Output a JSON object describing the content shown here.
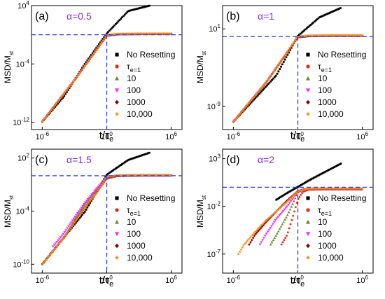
{
  "figure": {
    "legend_entries": [
      "No Resetting",
      "τ_e=1",
      "10",
      "100",
      "1000",
      "10,000"
    ],
    "legend_colors": [
      "#000000",
      "#ff1a1a",
      "#6b8e23",
      "#ff22ff",
      "#8b0000",
      "#ff8c1a"
    ],
    "legend_markers": [
      "square",
      "circle",
      "triangle-up",
      "triangle-down",
      "diamond",
      "star"
    ]
  },
  "chart_data": [
    {
      "type": "scatter",
      "panel_label": "(a)",
      "alpha_label": "α=0.5",
      "xlabel": "t/τ_e",
      "ylabel": "MSD/M_st",
      "scale": "log-log",
      "xlim": [
        1e-07,
        10000000.0
      ],
      "ylim": [
        1e-13,
        10000.0
      ],
      "xticks": [
        "10^-6",
        "10^0",
        "10^6"
      ],
      "yticks": [
        "10^-12",
        "10^-4",
        "10^4"
      ],
      "reference_lines": {
        "horizontal_y": 1,
        "vertical_x": 1
      },
      "series": [
        {
          "name": "No Resetting",
          "x": [
            1e-06,
            0.0001,
            0.01,
            1,
            100,
            10000
          ],
          "y": [
            1.2e-12,
            3.2e-09,
            0.00012,
            1.5,
            1800,
            10000
          ]
        },
        {
          "name": "τ_e=1",
          "x": [
            1e-06,
            0.001,
            1,
            10,
            1000,
            1000000
          ],
          "y": [
            1.2e-12,
            6e-07,
            0.7,
            1.1,
            1.2,
            1.2
          ]
        },
        {
          "name": "10",
          "x": [
            1e-06,
            0.001,
            1,
            10,
            1000,
            1000000
          ],
          "y": [
            1.2e-12,
            6e-07,
            0.75,
            1.15,
            1.25,
            1.25
          ]
        },
        {
          "name": "100",
          "x": [
            1e-06,
            0.001,
            1,
            10,
            1000,
            1000000
          ],
          "y": [
            1.2e-12,
            6e-07,
            0.8,
            1.2,
            1.3,
            1.3
          ]
        },
        {
          "name": "1000",
          "x": [
            1e-06,
            0.001,
            1,
            10,
            1000,
            1000000
          ],
          "y": [
            1.2e-12,
            6e-07,
            0.85,
            1.25,
            1.35,
            1.35
          ]
        },
        {
          "name": "10,000",
          "x": [
            1e-06,
            0.001,
            1,
            10,
            1000,
            1000000
          ],
          "y": [
            1.2e-12,
            6e-07,
            0.9,
            1.3,
            1.4,
            1.4
          ]
        }
      ]
    },
    {
      "type": "scatter",
      "panel_label": "(b)",
      "alpha_label": "α=1",
      "xlabel": "t/τ_e",
      "ylabel": "MSD/M_st",
      "scale": "log-log",
      "xlim": [
        1e-07,
        10000000.0
      ],
      "ylim": [
        1e-12,
        10000.0
      ],
      "xticks": [
        "10^-6",
        "10^0",
        "10^6"
      ],
      "yticks": [
        "10^-9",
        "10^1"
      ],
      "reference_lines": {
        "horizontal_y": 1,
        "vertical_x": 1
      },
      "series": [
        {
          "name": "No Resetting",
          "x": [
            1e-06,
            0.0001,
            0.01,
            1,
            100,
            10000
          ],
          "y": [
            1e-11,
            1e-08,
            1e-05,
            1.2,
            300,
            5000
          ]
        },
        {
          "name": "τ_e=1",
          "x": [
            1e-06,
            0.001,
            1,
            10,
            1000,
            1000000
          ],
          "y": [
            1e-11,
            1e-06,
            0.75,
            1.1,
            1.2,
            1.2
          ]
        },
        {
          "name": "10",
          "x": [
            1e-06,
            0.001,
            1,
            10,
            1000,
            1000000
          ],
          "y": [
            1e-11,
            1e-06,
            0.8,
            1.15,
            1.25,
            1.25
          ]
        },
        {
          "name": "100",
          "x": [
            1e-06,
            0.001,
            1,
            10,
            1000,
            1000000
          ],
          "y": [
            1e-11,
            1e-06,
            0.85,
            1.2,
            1.3,
            1.3
          ]
        },
        {
          "name": "1000",
          "x": [
            1e-06,
            0.001,
            1,
            10,
            1000,
            1000000
          ],
          "y": [
            1e-11,
            1e-06,
            0.9,
            1.25,
            1.35,
            1.35
          ]
        },
        {
          "name": "10,000",
          "x": [
            1e-06,
            0.001,
            1,
            10,
            1000,
            1000000
          ],
          "y": [
            1e-11,
            1e-06,
            0.95,
            1.3,
            1.4,
            1.4
          ]
        }
      ]
    },
    {
      "type": "scatter",
      "panel_label": "(c)",
      "alpha_label": "α=1.5",
      "xlabel": "t/τ_e",
      "ylabel": "MSD/M_st",
      "scale": "log-log",
      "xlim": [
        1e-07,
        10000000.0
      ],
      "ylim": [
        1e-11,
        1000.0
      ],
      "xticks": [
        "10^-6",
        "10^0",
        "10^6"
      ],
      "yticks": [
        "10^-10",
        "10^-4",
        "10^2"
      ],
      "reference_lines": {
        "horizontal_y": 1,
        "vertical_x": 1
      },
      "series": [
        {
          "name": "No Resetting",
          "x": [
            1e-06,
            0.0001,
            0.01,
            1,
            100,
            10000
          ],
          "y": [
            1e-10,
            1e-07,
            0.0001,
            1.3,
            60,
            400
          ]
        },
        {
          "name": "τ_e=1",
          "x": [
            0.001,
            0.01,
            0.1,
            0.5,
            1,
            10,
            1000,
            1000000
          ],
          "y": [
            1e-05,
            0.0003,
            0.01,
            0.15,
            0.45,
            0.9,
            1,
            1
          ]
        },
        {
          "name": "10",
          "x": [
            0.0001,
            0.001,
            0.01,
            0.1,
            1,
            10,
            1000,
            1000000
          ],
          "y": [
            1e-07,
            1e-05,
            0.0006,
            0.02,
            0.55,
            0.95,
            1.05,
            1.05
          ]
        },
        {
          "name": "100",
          "x": [
            1e-05,
            0.0001,
            0.001,
            0.01,
            0.1,
            1,
            10,
            1000,
            1000000
          ],
          "y": [
            1e-08,
            3e-07,
            2e-05,
            0.001,
            0.03,
            0.65,
            1,
            1.1,
            1.1
          ]
        },
        {
          "name": "1000",
          "x": [
            1e-06,
            1e-05,
            0.0001,
            0.001,
            0.01,
            0.1,
            1,
            10,
            1000,
            1000000
          ],
          "y": [
            1e-10,
            3e-09,
            1e-07,
            5e-06,
            0.0003,
            0.01,
            0.7,
            1.05,
            1.15,
            1.15
          ]
        },
        {
          "name": "10,000",
          "x": [
            1e-06,
            1e-05,
            0.0001,
            0.001,
            0.01,
            0.1,
            1,
            10,
            1000,
            1000000
          ],
          "y": [
            1e-10,
            3e-09,
            1e-07,
            5e-06,
            0.0003,
            0.01,
            0.75,
            1.1,
            1.2,
            1.2
          ]
        }
      ]
    },
    {
      "type": "scatter",
      "panel_label": "(d)",
      "alpha_label": "α=2",
      "xlabel": "t/τ_e",
      "ylabel": "MSD/M_st",
      "scale": "log-log",
      "xlim": [
        1e-07,
        10000000.0
      ],
      "ylim": [
        1e-09,
        10000.0
      ],
      "xticks": [
        "10^-6",
        "10^0",
        "10^6"
      ],
      "yticks": [
        "10^-7",
        "10^-2",
        "10^3"
      ],
      "reference_lines": {
        "horizontal_y": 1,
        "vertical_x": 1
      },
      "series": [
        {
          "name": "No Resetting",
          "x": [
            0.01,
            0.1,
            1,
            10,
            100,
            10000
          ],
          "y": [
            0.05,
            0.25,
            1.1,
            5,
            20,
            300
          ]
        },
        {
          "name": "τ_e=1",
          "x": [
            0.03,
            0.1,
            0.3,
            1,
            3,
            10,
            1000,
            1000000
          ],
          "y": [
            1e-06,
            1e-05,
            0.0005,
            0.05,
            0.35,
            0.55,
            0.6,
            0.6
          ]
        },
        {
          "name": "10",
          "x": [
            0.003,
            0.01,
            0.1,
            0.5,
            1,
            3,
            10,
            1000,
            1000000
          ],
          "y": [
            1e-06,
            1e-05,
            0.001,
            0.05,
            0.3,
            0.55,
            0.62,
            0.63,
            0.63
          ]
        },
        {
          "name": "100",
          "x": [
            0.0003,
            0.001,
            0.01,
            0.1,
            1,
            3,
            10,
            1000,
            1000000
          ],
          "y": [
            1e-06,
            1e-05,
            0.0005,
            0.01,
            0.35,
            0.6,
            0.66,
            0.66,
            0.66
          ]
        },
        {
          "name": "1000",
          "x": [
            3e-05,
            0.0001,
            0.001,
            0.01,
            0.1,
            1,
            10,
            1000,
            1000000
          ],
          "y": [
            1e-06,
            1e-05,
            0.0002,
            0.003,
            0.04,
            0.4,
            0.7,
            0.7,
            0.7
          ]
        },
        {
          "name": "10,000",
          "x": [
            3e-06,
            1e-05,
            0.0001,
            0.001,
            0.01,
            0.1,
            1,
            10,
            1000,
            1000000
          ],
          "y": [
            1e-07,
            1e-06,
            2e-05,
            0.0003,
            0.003,
            0.03,
            0.4,
            0.72,
            0.74,
            0.74
          ]
        }
      ]
    }
  ]
}
